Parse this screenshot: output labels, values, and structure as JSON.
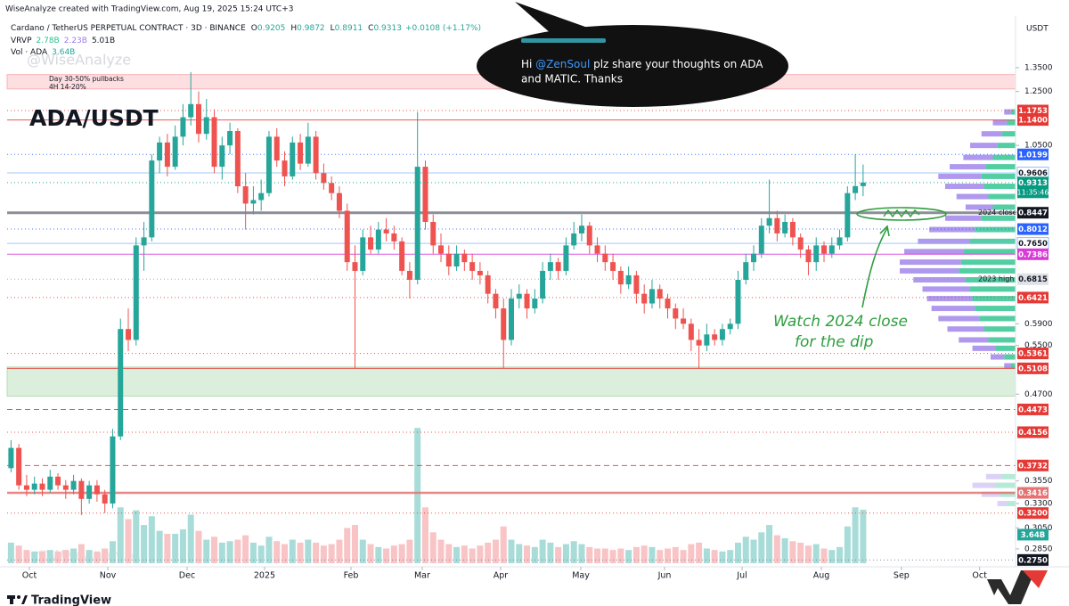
{
  "header": {
    "author_line": "WiseAnalyze created with TradingView.com, Aug 19, 2025 15:24 UTC+3",
    "brand": "TradingView"
  },
  "chart_data": {
    "type": "candlestick",
    "title": "ADA/USDT",
    "symbol": "Cardano / TetherUS PERPETUAL CONTRACT · 3D · BINANCE",
    "ohlc_prefix": [
      "O",
      "H",
      "L",
      "C"
    ],
    "change": "+0.0108 (+1.17%)",
    "vrvp": [
      "VRVP",
      "2.78B",
      "2.23B",
      "5.01B"
    ],
    "vol_title": "Vol · ADA",
    "volume_label": "3.64B",
    "currency": "USDT",
    "watermark": "@WiseAnalyze",
    "countdown": "11:35:46",
    "annotations": [
      "Day 30-50% pullbacks",
      "4H  14-20%"
    ],
    "watch_note": [
      "Watch 2024 close",
      "for the dip"
    ],
    "bubble": {
      "greeting": "Hi ",
      "mention": "@ZenSoul",
      "rest": " plz share your thoughts on ADA",
      "line2": "and MATIC. Thanks"
    },
    "log_scale": true,
    "up_color": "#26a69a",
    "down_color": "#ef5350",
    "volume_up_color": "#a8dcd8",
    "volume_down_color": "#f8c4c6",
    "profile_up_color": "#27c28b",
    "profile_down_color": "#9b7ee8",
    "xlim": [
      -0.5,
      128.5
    ],
    "xticks": [
      {
        "value": 2.35,
        "label": "Oct"
      },
      {
        "value": 12.38,
        "label": "Nov"
      },
      {
        "value": 22.52,
        "label": "Dec"
      },
      {
        "value": 32.43,
        "label": "2025"
      },
      {
        "value": 43.49,
        "label": "Feb"
      },
      {
        "value": 52.6,
        "label": "Mar"
      },
      {
        "value": 62.63,
        "label": "Apr"
      },
      {
        "value": 72.89,
        "label": "May"
      },
      {
        "value": 83.6,
        "label": "Jun"
      },
      {
        "value": 93.52,
        "label": "Jul"
      },
      {
        "value": 103.66,
        "label": "Aug"
      },
      {
        "value": 113.9,
        "label": "Sep"
      },
      {
        "value": 123.9,
        "label": "Oct"
      }
    ],
    "ylim": [
      0.269,
      1.595
    ],
    "yticks": [
      {
        "value": 1.35,
        "label": "1.3500"
      },
      {
        "value": 1.25,
        "label": "1.2500"
      },
      {
        "value": 1.05,
        "label": "1.0500"
      },
      {
        "value": 0.59,
        "label": "0.5900"
      },
      {
        "value": 0.55,
        "label": "0.5500"
      },
      {
        "value": 0.47,
        "label": "0.4700"
      },
      {
        "value": 0.355,
        "label": "0.3550"
      },
      {
        "value": 0.33,
        "label": "0.3300"
      },
      {
        "value": 0.305,
        "label": "0.3050"
      },
      {
        "value": 0.285,
        "label": "0.2850"
      }
    ],
    "zones": [
      {
        "from": 1.26,
        "to": 1.32,
        "color": "rgba(242,54,69,0.16)",
        "edge": "#f7a1a8"
      },
      {
        "from": 0.467,
        "to": 0.513,
        "color": "rgba(76,175,80,0.2)",
        "edge": "#a5d6a7"
      }
    ],
    "levels": [
      {
        "price": 1.1753,
        "label": "1.1753",
        "color": "#e53935",
        "style": "dotted",
        "weight": 1,
        "badge": "fill"
      },
      {
        "price": 1.14,
        "label": "1.1400",
        "color": "#e53935",
        "style": "solid",
        "weight": 1,
        "badge": "fill"
      },
      {
        "price": 1.0199,
        "label": "1.0199",
        "color": "#2962ff",
        "style": "dotted",
        "weight": 1,
        "badge": "fill"
      },
      {
        "price": 0.9606,
        "label": "0.9606",
        "color": "#90bff9",
        "style": "solid",
        "weight": 1,
        "badge": "outline"
      },
      {
        "price": 0.8447,
        "label": "0.8447",
        "color": "#787b86",
        "style": "solid",
        "weight": 3,
        "badge": "dark",
        "note": "2024 close"
      },
      {
        "price": 0.8012,
        "label": "0.8012",
        "color": "#2962ff",
        "style": "dotted",
        "weight": 1,
        "badge": "fill"
      },
      {
        "price": 0.765,
        "label": "0.7650",
        "color": "#90bff9",
        "style": "solid",
        "weight": 1,
        "badge": "outline"
      },
      {
        "price": 0.7386,
        "label": "0.7386",
        "color": "#d63bd6",
        "style": "solid",
        "weight": 1,
        "badge": "fill"
      },
      {
        "price": 0.6815,
        "label": "0.6815",
        "color": "#9598a1",
        "style": "dotted",
        "weight": 1,
        "badge": "grey",
        "note": "2023 high"
      },
      {
        "price": 0.6421,
        "label": "0.6421",
        "color": "#e53935",
        "style": "dotted",
        "weight": 1,
        "badge": "fill"
      },
      {
        "price": 0.5361,
        "label": "0.5361",
        "color": "#e53935",
        "style": "dotted",
        "weight": 1,
        "badge": "fill"
      },
      {
        "price": 0.5108,
        "label": "0.5108",
        "color": "#e53935",
        "style": "solid",
        "weight": 1,
        "badge": "fill"
      },
      {
        "price": 0.4473,
        "label": "0.4473",
        "color": "#e53935",
        "style": "dashed",
        "weight": 1,
        "badge": "fill"
      },
      {
        "price": 0.4156,
        "label": "0.4156",
        "color": "#e53935",
        "style": "dotted",
        "weight": 1,
        "badge": "fill"
      },
      {
        "price": 0.3732,
        "label": "0.3732",
        "color": "#e53935",
        "style": "dashed",
        "weight": 1,
        "badge": "fill"
      },
      {
        "price": 0.3416,
        "label": "0.3416",
        "color": "#e57373",
        "style": "solid",
        "weight": 2.5,
        "badge": "fill"
      },
      {
        "price": 0.32,
        "label": "0.3200",
        "color": "#e53935",
        "style": "dotted",
        "weight": 1,
        "badge": "fill"
      },
      {
        "price": 0.275,
        "label": "0.2750",
        "color": "#787b86",
        "style": "dotted",
        "weight": 1,
        "badge": "dark"
      }
    ],
    "candles": [
      [
        0.37,
        0.405,
        0.365,
        0.395
      ],
      [
        0.395,
        0.4,
        0.345,
        0.35
      ],
      [
        0.35,
        0.362,
        0.338,
        0.345
      ],
      [
        0.345,
        0.36,
        0.34,
        0.352
      ],
      [
        0.352,
        0.358,
        0.338,
        0.345
      ],
      [
        0.345,
        0.368,
        0.342,
        0.36
      ],
      [
        0.36,
        0.364,
        0.345,
        0.35
      ],
      [
        0.35,
        0.356,
        0.335,
        0.345
      ],
      [
        0.345,
        0.362,
        0.34,
        0.355
      ],
      [
        0.355,
        0.358,
        0.318,
        0.335
      ],
      [
        0.335,
        0.355,
        0.33,
        0.35
      ],
      [
        0.35,
        0.356,
        0.332,
        0.34
      ],
      [
        0.34,
        0.345,
        0.32,
        0.33
      ],
      [
        0.33,
        0.42,
        0.325,
        0.41
      ],
      [
        0.41,
        0.6,
        0.405,
        0.58
      ],
      [
        0.58,
        0.62,
        0.54,
        0.56
      ],
      [
        0.56,
        0.78,
        0.55,
        0.76
      ],
      [
        0.76,
        0.82,
        0.7,
        0.78
      ],
      [
        0.78,
        1.02,
        0.77,
        1.0
      ],
      [
        1.0,
        1.08,
        0.96,
        1.06
      ],
      [
        1.06,
        1.09,
        0.95,
        0.98
      ],
      [
        0.98,
        1.12,
        0.97,
        1.08
      ],
      [
        1.08,
        1.2,
        1.05,
        1.15
      ],
      [
        1.15,
        1.33,
        1.12,
        1.2
      ],
      [
        1.2,
        1.25,
        1.06,
        1.09
      ],
      [
        1.09,
        1.22,
        1.07,
        1.15
      ],
      [
        1.15,
        1.18,
        0.96,
        0.98
      ],
      [
        0.98,
        1.08,
        0.94,
        1.05
      ],
      [
        1.05,
        1.13,
        1.02,
        1.1
      ],
      [
        1.1,
        1.11,
        0.9,
        0.92
      ],
      [
        0.92,
        0.96,
        0.8,
        0.87
      ],
      [
        0.87,
        0.92,
        0.84,
        0.88
      ],
      [
        0.88,
        0.94,
        0.85,
        0.9
      ],
      [
        0.9,
        1.1,
        0.89,
        1.08
      ],
      [
        1.08,
        1.11,
        0.98,
        1.0
      ],
      [
        1.0,
        1.03,
        0.92,
        0.95
      ],
      [
        0.95,
        1.08,
        0.94,
        1.06
      ],
      [
        1.06,
        1.09,
        0.97,
        0.99
      ],
      [
        0.99,
        1.13,
        0.98,
        1.08
      ],
      [
        1.08,
        1.1,
        0.94,
        0.96
      ],
      [
        0.96,
        0.99,
        0.91,
        0.93
      ],
      [
        0.93,
        0.95,
        0.88,
        0.9
      ],
      [
        0.9,
        0.92,
        0.83,
        0.85
      ],
      [
        0.85,
        0.87,
        0.7,
        0.72
      ],
      [
        0.72,
        0.76,
        0.51,
        0.7
      ],
      [
        0.7,
        0.8,
        0.69,
        0.78
      ],
      [
        0.78,
        0.81,
        0.74,
        0.75
      ],
      [
        0.75,
        0.82,
        0.74,
        0.8
      ],
      [
        0.8,
        0.83,
        0.77,
        0.79
      ],
      [
        0.79,
        0.81,
        0.75,
        0.77
      ],
      [
        0.77,
        0.78,
        0.69,
        0.7
      ],
      [
        0.7,
        0.72,
        0.64,
        0.68
      ],
      [
        0.68,
        1.17,
        0.67,
        0.98
      ],
      [
        0.98,
        1.0,
        0.8,
        0.82
      ],
      [
        0.82,
        0.84,
        0.74,
        0.76
      ],
      [
        0.76,
        0.79,
        0.72,
        0.74
      ],
      [
        0.74,
        0.76,
        0.69,
        0.71
      ],
      [
        0.71,
        0.76,
        0.7,
        0.74
      ],
      [
        0.74,
        0.75,
        0.7,
        0.72
      ],
      [
        0.72,
        0.74,
        0.68,
        0.7
      ],
      [
        0.7,
        0.72,
        0.67,
        0.69
      ],
      [
        0.69,
        0.7,
        0.63,
        0.65
      ],
      [
        0.65,
        0.66,
        0.6,
        0.62
      ],
      [
        0.62,
        0.64,
        0.51,
        0.56
      ],
      [
        0.56,
        0.66,
        0.55,
        0.64
      ],
      [
        0.64,
        0.67,
        0.62,
        0.65
      ],
      [
        0.65,
        0.66,
        0.6,
        0.62
      ],
      [
        0.62,
        0.66,
        0.61,
        0.64
      ],
      [
        0.64,
        0.72,
        0.63,
        0.7
      ],
      [
        0.7,
        0.74,
        0.68,
        0.72
      ],
      [
        0.72,
        0.73,
        0.68,
        0.7
      ],
      [
        0.7,
        0.78,
        0.69,
        0.76
      ],
      [
        0.76,
        0.82,
        0.75,
        0.79
      ],
      [
        0.79,
        0.84,
        0.77,
        0.81
      ],
      [
        0.81,
        0.82,
        0.74,
        0.76
      ],
      [
        0.76,
        0.78,
        0.72,
        0.74
      ],
      [
        0.74,
        0.76,
        0.7,
        0.72
      ],
      [
        0.72,
        0.74,
        0.68,
        0.7
      ],
      [
        0.7,
        0.71,
        0.65,
        0.67
      ],
      [
        0.67,
        0.71,
        0.66,
        0.69
      ],
      [
        0.69,
        0.7,
        0.63,
        0.65
      ],
      [
        0.65,
        0.67,
        0.61,
        0.63
      ],
      [
        0.63,
        0.68,
        0.62,
        0.66
      ],
      [
        0.66,
        0.67,
        0.62,
        0.64
      ],
      [
        0.64,
        0.65,
        0.6,
        0.62
      ],
      [
        0.62,
        0.63,
        0.58,
        0.6
      ],
      [
        0.6,
        0.62,
        0.58,
        0.59
      ],
      [
        0.59,
        0.6,
        0.54,
        0.56
      ],
      [
        0.56,
        0.58,
        0.51,
        0.55
      ],
      [
        0.55,
        0.59,
        0.54,
        0.57
      ],
      [
        0.57,
        0.58,
        0.55,
        0.56
      ],
      [
        0.56,
        0.59,
        0.55,
        0.58
      ],
      [
        0.58,
        0.6,
        0.57,
        0.59
      ],
      [
        0.59,
        0.7,
        0.58,
        0.68
      ],
      [
        0.68,
        0.74,
        0.67,
        0.72
      ],
      [
        0.72,
        0.76,
        0.7,
        0.74
      ],
      [
        0.74,
        0.83,
        0.73,
        0.81
      ],
      [
        0.81,
        0.94,
        0.79,
        0.83
      ],
      [
        0.83,
        0.85,
        0.77,
        0.79
      ],
      [
        0.79,
        0.84,
        0.78,
        0.82
      ],
      [
        0.82,
        0.83,
        0.76,
        0.78
      ],
      [
        0.78,
        0.79,
        0.73,
        0.75
      ],
      [
        0.75,
        0.76,
        0.69,
        0.72
      ],
      [
        0.72,
        0.78,
        0.7,
        0.76
      ],
      [
        0.76,
        0.77,
        0.72,
        0.74
      ],
      [
        0.74,
        0.78,
        0.73,
        0.76
      ],
      [
        0.76,
        0.8,
        0.75,
        0.78
      ],
      [
        0.78,
        0.92,
        0.77,
        0.9
      ],
      [
        0.9,
        1.02,
        0.88,
        0.9205
      ],
      [
        0.9205,
        0.9872,
        0.8911,
        0.9313
      ]
    ],
    "volume": [
      1.4,
      1.2,
      0.9,
      0.8,
      0.8,
      0.9,
      0.8,
      0.9,
      1.0,
      1.3,
      0.9,
      0.8,
      1.0,
      1.5,
      3.8,
      3.0,
      3.6,
      2.6,
      3.2,
      2.2,
      2.0,
      2.0,
      2.3,
      3.3,
      2.2,
      1.6,
      1.8,
      1.4,
      1.5,
      1.6,
      1.9,
      1.4,
      1.2,
      1.8,
      1.5,
      1.3,
      1.6,
      1.4,
      1.6,
      1.4,
      1.2,
      1.3,
      1.6,
      2.4,
      2.6,
      1.6,
      1.3,
      1.1,
      1.0,
      1.2,
      1.3,
      1.6,
      9.2,
      3.8,
      2.1,
      1.6,
      1.3,
      1.1,
      1.2,
      1.0,
      1.2,
      1.4,
      1.6,
      2.5,
      1.6,
      1.3,
      1.2,
      1.1,
      1.6,
      1.4,
      1.1,
      1.3,
      1.5,
      1.3,
      1.1,
      1.0,
      1.0,
      0.9,
      1.0,
      0.9,
      1.1,
      1.2,
      1.1,
      0.9,
      1.0,
      1.1,
      0.9,
      1.3,
      1.4,
      1.0,
      0.9,
      0.8,
      0.9,
      1.4,
      1.8,
      1.6,
      2.1,
      2.6,
      1.9,
      1.7,
      1.5,
      1.4,
      1.2,
      1.3,
      1.0,
      0.9,
      1.1,
      2.5,
      3.8,
      3.64
    ],
    "profile": [
      {
        "price": 1.17,
        "up": 0.2,
        "down": 0.3
      },
      {
        "price": 1.13,
        "up": 0.4,
        "down": 0.6
      },
      {
        "price": 1.09,
        "up": 0.6,
        "down": 0.9
      },
      {
        "price": 1.05,
        "up": 0.8,
        "down": 1.2
      },
      {
        "price": 1.01,
        "up": 1.0,
        "down": 1.3
      },
      {
        "price": 0.98,
        "up": 1.3,
        "down": 1.6
      },
      {
        "price": 0.95,
        "up": 1.5,
        "down": 1.9
      },
      {
        "price": 0.92,
        "up": 1.4,
        "down": 1.7
      },
      {
        "price": 0.89,
        "up": 1.2,
        "down": 1.4
      },
      {
        "price": 0.86,
        "up": 1.0,
        "down": 1.2
      },
      {
        "price": 0.83,
        "up": 1.5,
        "down": 1.6
      },
      {
        "price": 0.8,
        "up": 1.8,
        "down": 2.0
      },
      {
        "price": 0.77,
        "up": 2.0,
        "down": 2.3
      },
      {
        "price": 0.745,
        "up": 2.3,
        "down": 2.6
      },
      {
        "price": 0.72,
        "up": 2.4,
        "down": 2.7
      },
      {
        "price": 0.7,
        "up": 2.5,
        "down": 2.6
      },
      {
        "price": 0.68,
        "up": 2.2,
        "down": 2.3
      },
      {
        "price": 0.66,
        "up": 2.0,
        "down": 2.1
      },
      {
        "price": 0.64,
        "up": 1.9,
        "down": 2.0
      },
      {
        "price": 0.62,
        "up": 1.8,
        "down": 1.9
      },
      {
        "price": 0.6,
        "up": 1.6,
        "down": 1.8
      },
      {
        "price": 0.58,
        "up": 1.4,
        "down": 1.6
      },
      {
        "price": 0.56,
        "up": 1.2,
        "down": 1.3
      },
      {
        "price": 0.545,
        "up": 0.9,
        "down": 1.0
      },
      {
        "price": 0.53,
        "up": 0.5,
        "down": 0.6
      },
      {
        "price": 0.515,
        "up": 0.2,
        "down": 0.3
      },
      {
        "price": 0.36,
        "up": 0.6,
        "down": 0.7
      },
      {
        "price": 0.35,
        "up": 0.9,
        "down": 1.0
      },
      {
        "price": 0.34,
        "up": 0.7,
        "down": 0.8
      },
      {
        "price": 0.33,
        "up": 0.4,
        "down": 0.4
      }
    ]
  }
}
